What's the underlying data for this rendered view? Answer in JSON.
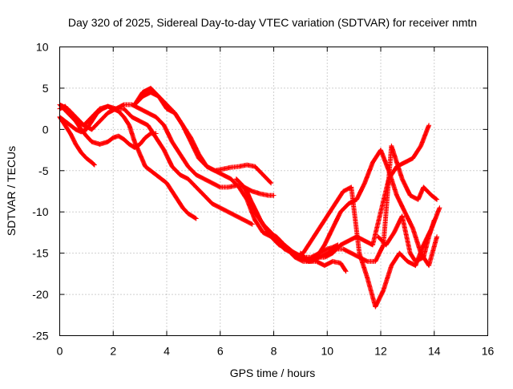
{
  "chart_data": {
    "type": "scatter",
    "title": "Day 320 of 2025, Sidereal Day-to-day VTEC variation (SDTVAR) for receiver nmtn",
    "xlabel": "GPS time / hours",
    "ylabel": "SDTVAR / TECUs",
    "xlim": [
      0,
      16
    ],
    "ylim": [
      -25,
      10
    ],
    "xticks": [
      0,
      2,
      4,
      6,
      8,
      10,
      12,
      14,
      16
    ],
    "yticks": [
      10,
      5,
      0,
      -5,
      -10,
      -15,
      -20,
      -25
    ],
    "grid": true,
    "marker": "+",
    "color": "#ff0000",
    "series": [
      {
        "x": [
          0.0,
          0.2,
          0.4,
          0.6,
          0.8,
          1.0,
          1.2,
          1.3
        ],
        "y": [
          1.5,
          0.5,
          -0.5,
          -1.8,
          -2.8,
          -3.5,
          -4.0,
          -4.3
        ]
      },
      {
        "x": [
          0.0,
          0.2,
          0.4,
          0.6,
          0.8,
          1.0,
          1.2,
          1.5,
          1.8,
          2.0,
          2.2,
          2.4,
          2.6,
          2.8,
          3.0,
          3.2,
          3.4,
          3.6
        ],
        "y": [
          2.5,
          2.8,
          2.0,
          1.0,
          0.0,
          -0.8,
          -1.5,
          -1.8,
          -1.5,
          -1.0,
          -0.8,
          -1.2,
          -1.8,
          -2.2,
          -1.8,
          -1.0,
          -0.5,
          -0.5
        ]
      },
      {
        "x": [
          0.0,
          0.2,
          0.4,
          0.6,
          0.8,
          1.0,
          1.2,
          1.4,
          1.6,
          1.8,
          2.0,
          2.2,
          2.4,
          2.6,
          2.8,
          3.0,
          3.2,
          3.4,
          3.6,
          3.8,
          4.0,
          4.2,
          4.4,
          4.6,
          4.8,
          5.1
        ],
        "y": [
          1.5,
          1.0,
          0.5,
          0.0,
          -0.3,
          0.0,
          1.0,
          2.0,
          2.5,
          2.8,
          2.5,
          2.2,
          1.5,
          0.5,
          -1.5,
          -3.0,
          -4.5,
          -5.0,
          -5.5,
          -6.0,
          -6.5,
          -7.5,
          -8.5,
          -9.5,
          -10.2,
          -10.8
        ]
      },
      {
        "x": [
          0.0,
          0.3,
          0.6,
          0.9,
          1.2,
          1.5,
          1.8,
          2.1,
          2.4,
          2.7,
          3.0,
          3.3,
          3.6,
          3.9,
          4.2,
          4.5,
          4.8,
          5.1,
          5.4,
          5.7,
          6.0,
          6.3,
          6.6,
          6.9,
          7.2
        ],
        "y": [
          3.0,
          2.0,
          1.0,
          0.5,
          1.5,
          2.5,
          2.8,
          2.5,
          2.5,
          1.5,
          1.0,
          0.5,
          -1.0,
          -2.5,
          -4.5,
          -5.5,
          -6.0,
          -7.0,
          -8.0,
          -9.0,
          -9.5,
          -10.0,
          -10.5,
          -11.0,
          -11.5
        ]
      },
      {
        "x": [
          0.0,
          0.3,
          0.6,
          0.9,
          1.2,
          1.5,
          1.8,
          2.1,
          2.4,
          2.7,
          3.0,
          3.3,
          3.6,
          3.9,
          4.2,
          4.5,
          4.8,
          5.1,
          5.4,
          5.7,
          6.0,
          6.3,
          6.6,
          6.9,
          7.2,
          7.5,
          7.8,
          8.0
        ],
        "y": [
          3.0,
          2.5,
          1.5,
          0.5,
          0.0,
          1.0,
          2.0,
          2.5,
          3.0,
          3.0,
          2.5,
          2.0,
          1.5,
          0.5,
          -1.5,
          -3.0,
          -4.5,
          -5.5,
          -6.0,
          -6.5,
          -7.0,
          -7.0,
          -6.8,
          -7.0,
          -7.5,
          -7.8,
          -8.0,
          -8.0
        ]
      },
      {
        "x": [
          2.8,
          3.1,
          3.4,
          3.7,
          4.0,
          4.3,
          4.6,
          4.9,
          5.2,
          5.5,
          5.8,
          6.1,
          6.4,
          6.7,
          7.0,
          7.3,
          7.6,
          7.9
        ],
        "y": [
          3.0,
          4.0,
          4.5,
          4.0,
          3.0,
          2.0,
          0.5,
          -1.5,
          -3.5,
          -4.5,
          -5.0,
          -4.8,
          -4.6,
          -4.5,
          -4.3,
          -4.5,
          -5.5,
          -6.5
        ]
      },
      {
        "x": [
          2.8,
          3.1,
          3.4,
          3.7,
          4.0,
          4.3,
          4.6,
          4.9,
          5.2,
          5.5,
          5.8,
          6.1,
          6.4,
          6.7,
          7.0,
          7.3,
          7.6,
          7.9,
          8.2,
          8.5,
          8.8,
          9.1,
          9.4,
          9.7,
          10.0,
          10.2,
          10.4
        ],
        "y": [
          3.0,
          4.5,
          5.0,
          4.0,
          2.5,
          2.0,
          0.5,
          -1.0,
          -3.0,
          -4.5,
          -5.0,
          -5.5,
          -6.0,
          -7.0,
          -8.5,
          -11.0,
          -12.5,
          -13.0,
          -14.0,
          -14.5,
          -15.0,
          -15.5,
          -15.5,
          -15.0,
          -14.5,
          -14.3,
          -14.0
        ]
      },
      {
        "x": [
          6.6,
          6.9,
          7.2,
          7.5,
          7.8,
          8.1,
          8.4,
          8.7,
          9.0,
          9.3,
          9.6,
          9.9,
          10.2,
          10.5,
          10.8,
          11.1,
          11.4,
          11.7,
          12.0,
          12.3,
          12.6,
          12.9,
          13.2,
          13.5,
          13.8
        ],
        "y": [
          -6.0,
          -7.0,
          -9.0,
          -11.0,
          -12.5,
          -13.0,
          -14.0,
          -14.8,
          -15.5,
          -15.8,
          -15.5,
          -15.5,
          -15.0,
          -14.0,
          -13.5,
          -13.0,
          -13.5,
          -14.0,
          -10.0,
          -6.0,
          -4.5,
          -4.0,
          -3.5,
          -2.0,
          0.5
        ]
      },
      {
        "x": [
          7.0,
          7.3,
          7.6,
          7.9,
          8.2,
          8.5,
          8.8,
          9.1,
          9.4,
          9.7,
          10.0,
          10.3,
          10.6,
          10.9,
          11.2,
          11.5,
          11.8,
          12.1,
          12.4,
          12.6,
          12.8,
          13.1,
          13.4,
          13.6,
          13.9,
          14.1
        ],
        "y": [
          -7.5,
          -10.0,
          -11.5,
          -12.5,
          -13.5,
          -14.5,
          -15.5,
          -16.0,
          -16.0,
          -15.5,
          -15.0,
          -14.5,
          -14.5,
          -15.0,
          -15.5,
          -16.0,
          -16.0,
          -14.0,
          -2.0,
          -4.0,
          -6.0,
          -8.0,
          -8.5,
          -7.0,
          -8.0,
          -8.5
        ]
      },
      {
        "x": [
          7.2,
          7.5,
          7.8,
          8.1,
          8.4,
          8.7,
          9.0,
          9.3,
          9.6,
          9.9,
          10.2,
          10.5,
          10.8,
          11.1,
          11.4,
          11.7,
          12.0,
          12.3,
          12.6,
          12.9,
          13.2,
          13.5,
          13.8,
          14.1
        ],
        "y": [
          -9.0,
          -11.0,
          -12.5,
          -13.5,
          -14.5,
          -15.0,
          -15.5,
          -16.0,
          -15.5,
          -14.0,
          -12.0,
          -10.0,
          -9.0,
          -8.5,
          -6.5,
          -4.0,
          -2.5,
          -5.0,
          -8.0,
          -10.0,
          -12.0,
          -15.0,
          -16.5,
          -13.0
        ]
      },
      {
        "x": [
          8.5,
          8.8,
          9.1,
          9.4,
          9.7,
          10.0,
          10.3,
          10.6,
          10.9,
          11.2,
          11.5,
          11.8,
          12.1,
          12.4,
          12.7,
          13.0,
          13.3,
          13.6,
          13.9,
          14.2
        ],
        "y": [
          -14.5,
          -15.5,
          -15.0,
          -13.5,
          -12.0,
          -10.5,
          -9.0,
          -7.5,
          -7.0,
          -15.0,
          -18.0,
          -21.5,
          -19.5,
          -16.5,
          -15.0,
          -16.0,
          -16.5,
          -14.0,
          -12.0,
          -9.5
        ]
      },
      {
        "x": [
          9.0,
          9.3,
          9.6,
          9.9,
          10.2,
          10.5,
          10.7
        ],
        "y": [
          -15.0,
          -16.0,
          -16.0,
          -16.5,
          -16.0,
          -16.2,
          -17.2
        ]
      },
      {
        "x": [
          11.9,
          12.2,
          12.5,
          12.8,
          13.1,
          13.3,
          13.6,
          13.8,
          14.0
        ],
        "y": [
          -13.0,
          -14.0,
          -12.5,
          -10.5,
          -15.0,
          -16.0,
          -15.5,
          -13.0,
          -11.0
        ]
      }
    ]
  }
}
